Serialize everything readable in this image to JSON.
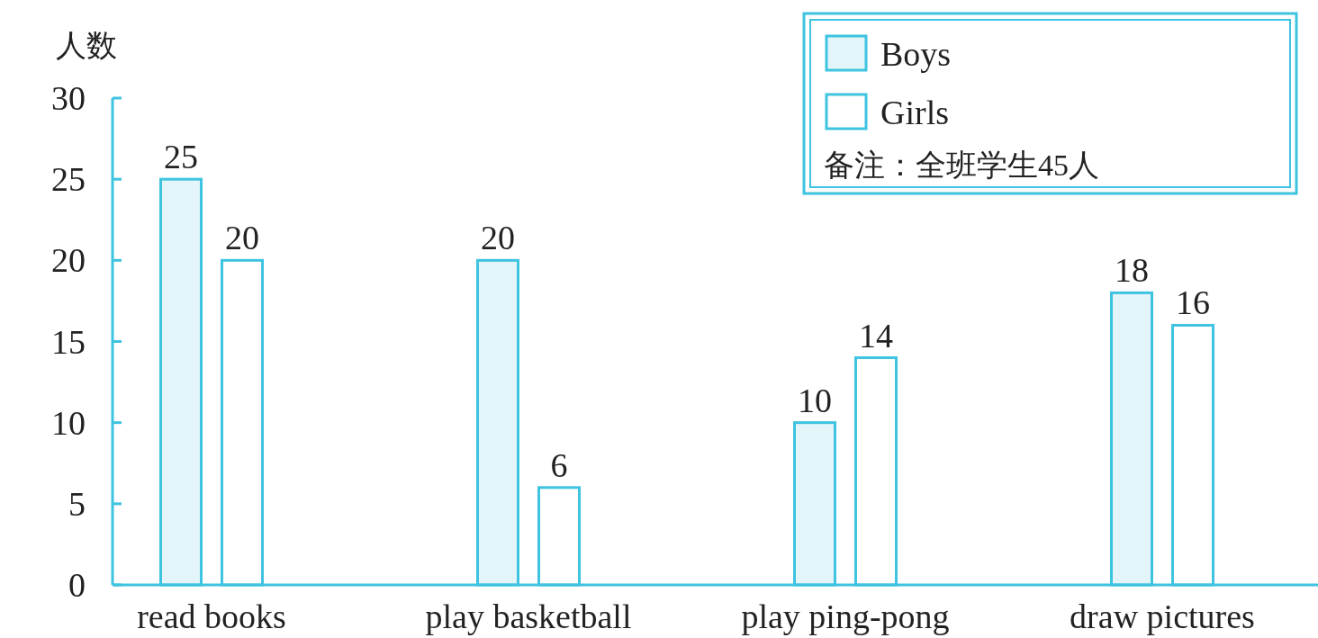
{
  "chart_data": {
    "type": "bar",
    "ylabel": "人数",
    "categories": [
      "read books",
      "play basketball",
      "play ping-pong",
      "draw pictures"
    ],
    "series": [
      {
        "name": "Boys",
        "color": "#e4f5fa",
        "values": [
          25,
          20,
          10,
          18
        ]
      },
      {
        "name": "Girls",
        "color": "#ffffff",
        "values": [
          20,
          6,
          14,
          16
        ]
      }
    ],
    "ylim": [
      0,
      30
    ],
    "yticks": [
      0,
      5,
      10,
      15,
      20,
      25,
      30
    ],
    "data_labels": true,
    "legend": "top right",
    "grid": false,
    "annotations": [
      "备注：全班学生45人"
    ]
  }
}
